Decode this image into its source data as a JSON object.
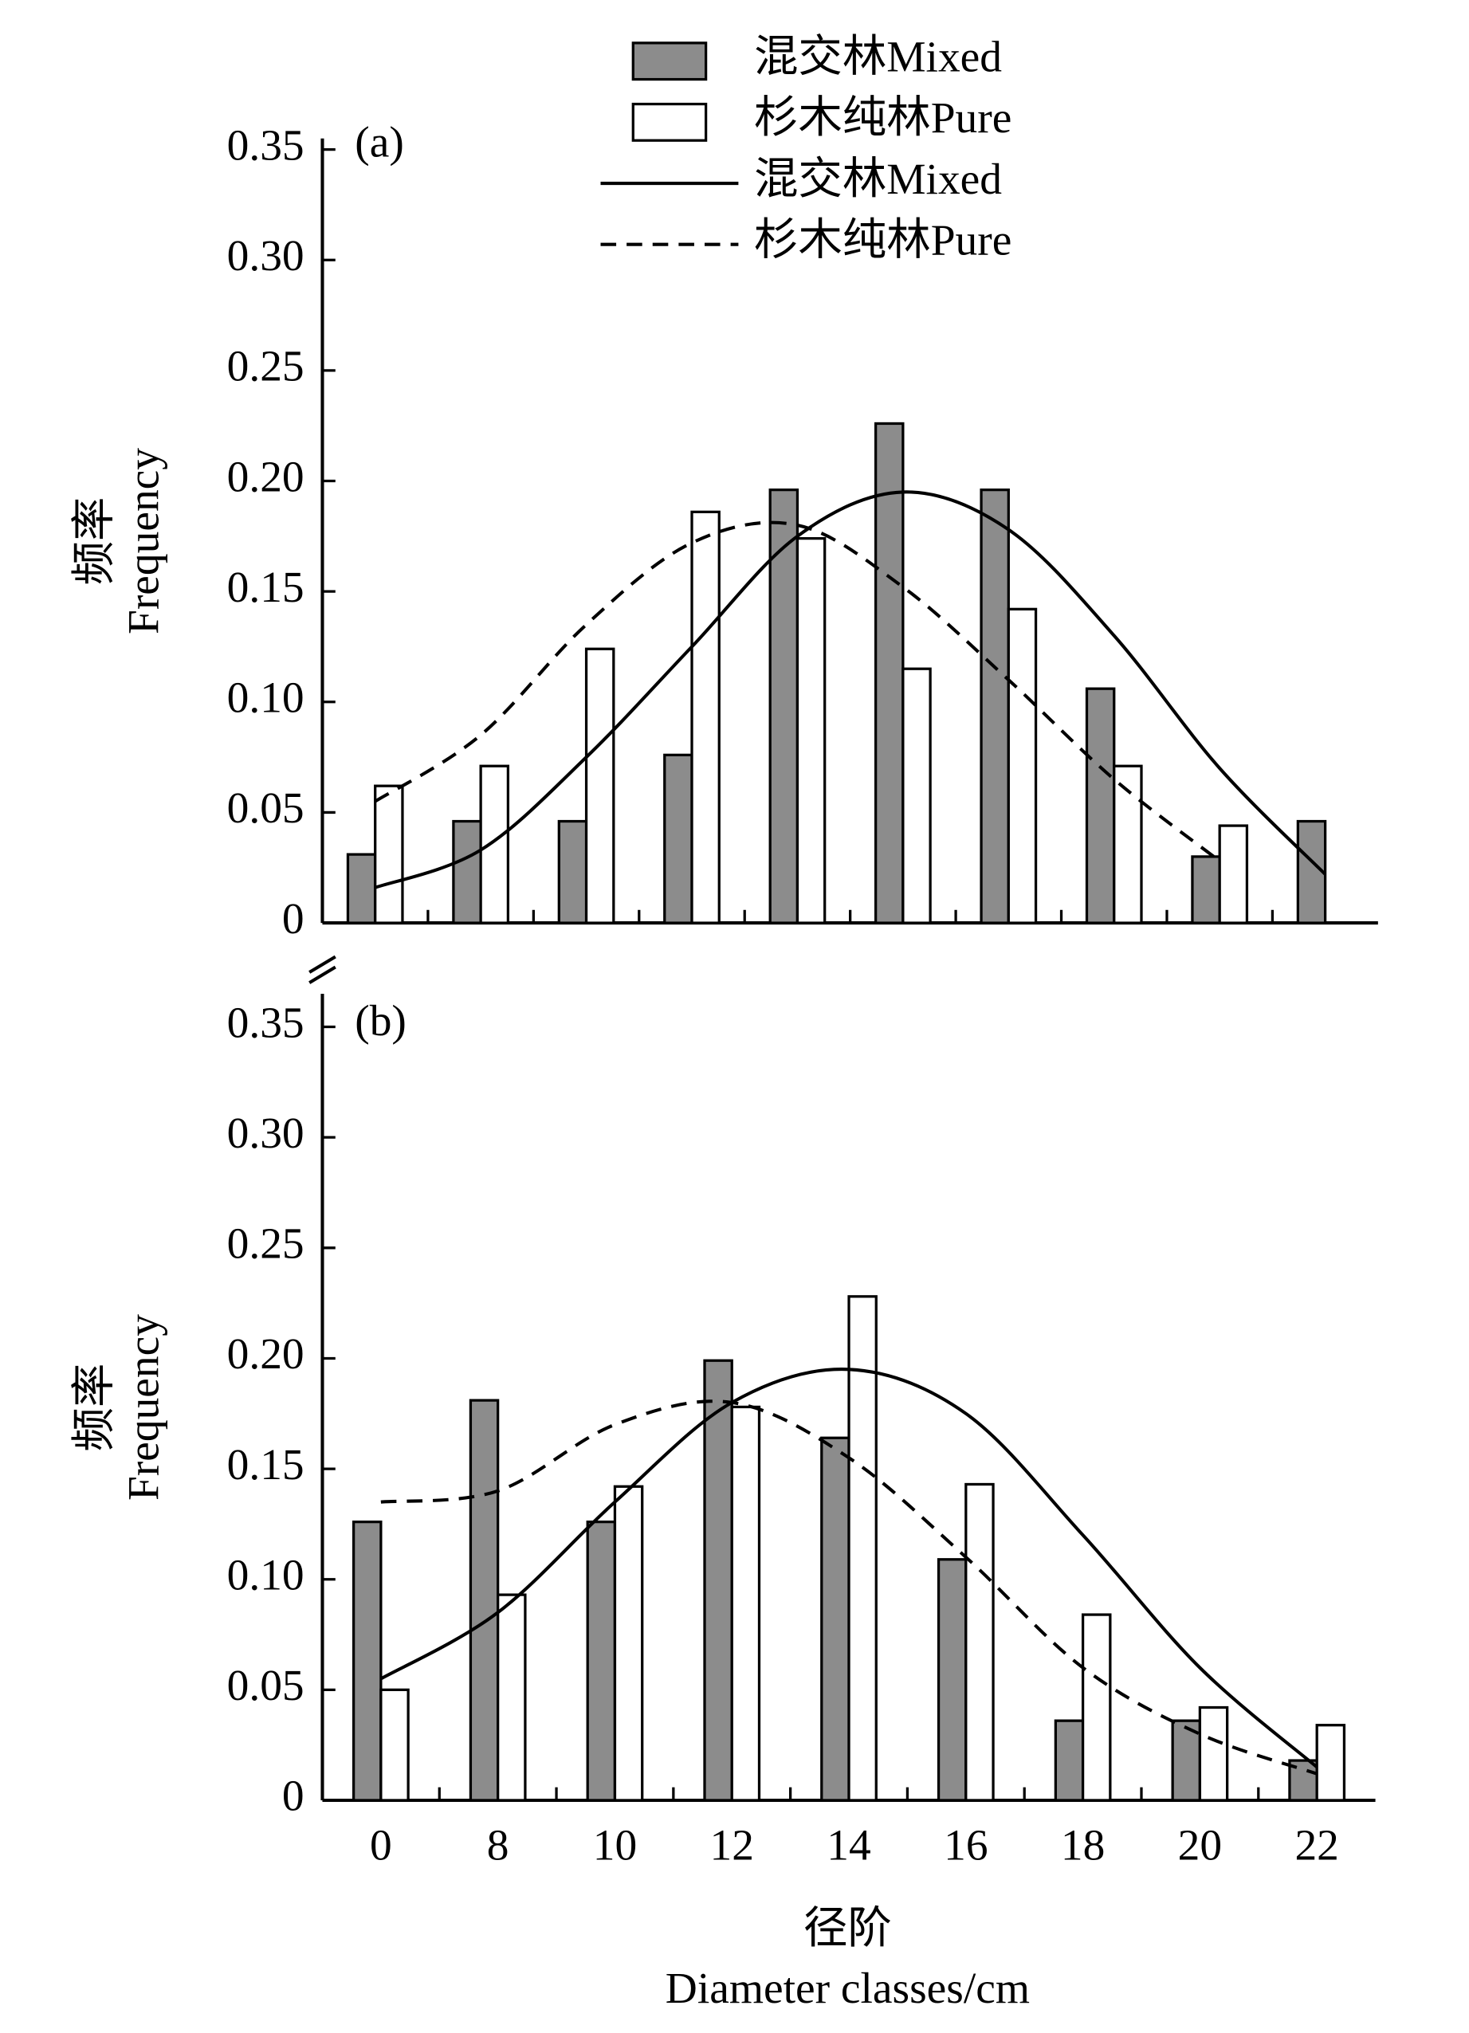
{
  "chart_data": [
    {
      "type": "bar",
      "panel_label": "(a)",
      "ylabel": [
        "频率",
        "Frequency"
      ],
      "categories": [
        null,
        null,
        null,
        null,
        null,
        null,
        null,
        null,
        null,
        null
      ],
      "ylim": [
        0,
        0.355
      ],
      "yticks": [
        0,
        0.05,
        {
          "value": 0.1,
          "label": "0.10"
        },
        0.15,
        {
          "value": 0.2,
          "label": "0.20"
        },
        0.25,
        {
          "value": 0.3,
          "label": "0.30"
        },
        0.35
      ],
      "legend": "top",
      "series": [
        {
          "name": "混交林Mixed",
          "kind": "bar",
          "color": "#8c8c8c",
          "values": [
            0.031,
            0.046,
            0.046,
            0.076,
            0.196,
            0.226,
            0.196,
            0.106,
            0.03,
            0.046
          ]
        },
        {
          "name": "杉木纯林Pure",
          "kind": "bar",
          "color": "#ffffff",
          "values": [
            0.062,
            0.071,
            0.124,
            0.186,
            0.174,
            0.115,
            0.142,
            0.071,
            0.044,
            null
          ]
        },
        {
          "name": "混交林Mixed",
          "kind": "line",
          "color": "#000000",
          "dash": false,
          "values": [
            0.016,
            0.033,
            0.075,
            0.125,
            0.175,
            0.195,
            0.178,
            0.13,
            0.07,
            0.022
          ]
        },
        {
          "name": "杉木纯林Pure",
          "kind": "line",
          "color": "#000000",
          "dash": true,
          "values": [
            0.055,
            0.085,
            0.135,
            0.172,
            0.18,
            0.152,
            0.11,
            0.065,
            0.028,
            null
          ]
        }
      ]
    },
    {
      "type": "bar",
      "panel_label": "(b)",
      "ylabel": [
        "频率",
        "Frequency"
      ],
      "xlabel": [
        "径阶",
        "Diameter classes/cm"
      ],
      "categories": [
        "0",
        "8",
        "10",
        "12",
        "14",
        "16",
        "18",
        "20",
        "22"
      ],
      "ylim": [
        0,
        0.365
      ],
      "yticks": [
        0,
        0.05,
        {
          "value": 0.1,
          "label": "0.10"
        },
        0.15,
        {
          "value": 0.2,
          "label": "0.20"
        },
        0.25,
        {
          "value": 0.3,
          "label": "0.30"
        },
        0.35
      ],
      "series": [
        {
          "name": "混交林Mixed",
          "kind": "bar",
          "color": "#8c8c8c",
          "values": [
            0.126,
            0.181,
            0.126,
            0.199,
            0.164,
            0.109,
            0.036,
            0.036,
            0.018
          ]
        },
        {
          "name": "杉木纯林Pure",
          "kind": "bar",
          "color": "#ffffff",
          "values": [
            0.05,
            0.093,
            0.142,
            0.178,
            0.228,
            0.143,
            0.084,
            0.042,
            0.034
          ]
        },
        {
          "name": "混交林Mixed",
          "kind": "line",
          "color": "#000000",
          "dash": false,
          "values": [
            0.055,
            0.085,
            0.135,
            0.18,
            0.195,
            0.175,
            0.12,
            0.06,
            0.015
          ]
        },
        {
          "name": "杉木纯林Pure",
          "kind": "line",
          "color": "#000000",
          "dash": true,
          "values": [
            0.135,
            0.14,
            0.17,
            0.18,
            0.155,
            0.11,
            0.06,
            0.03,
            0.012
          ]
        }
      ]
    }
  ]
}
